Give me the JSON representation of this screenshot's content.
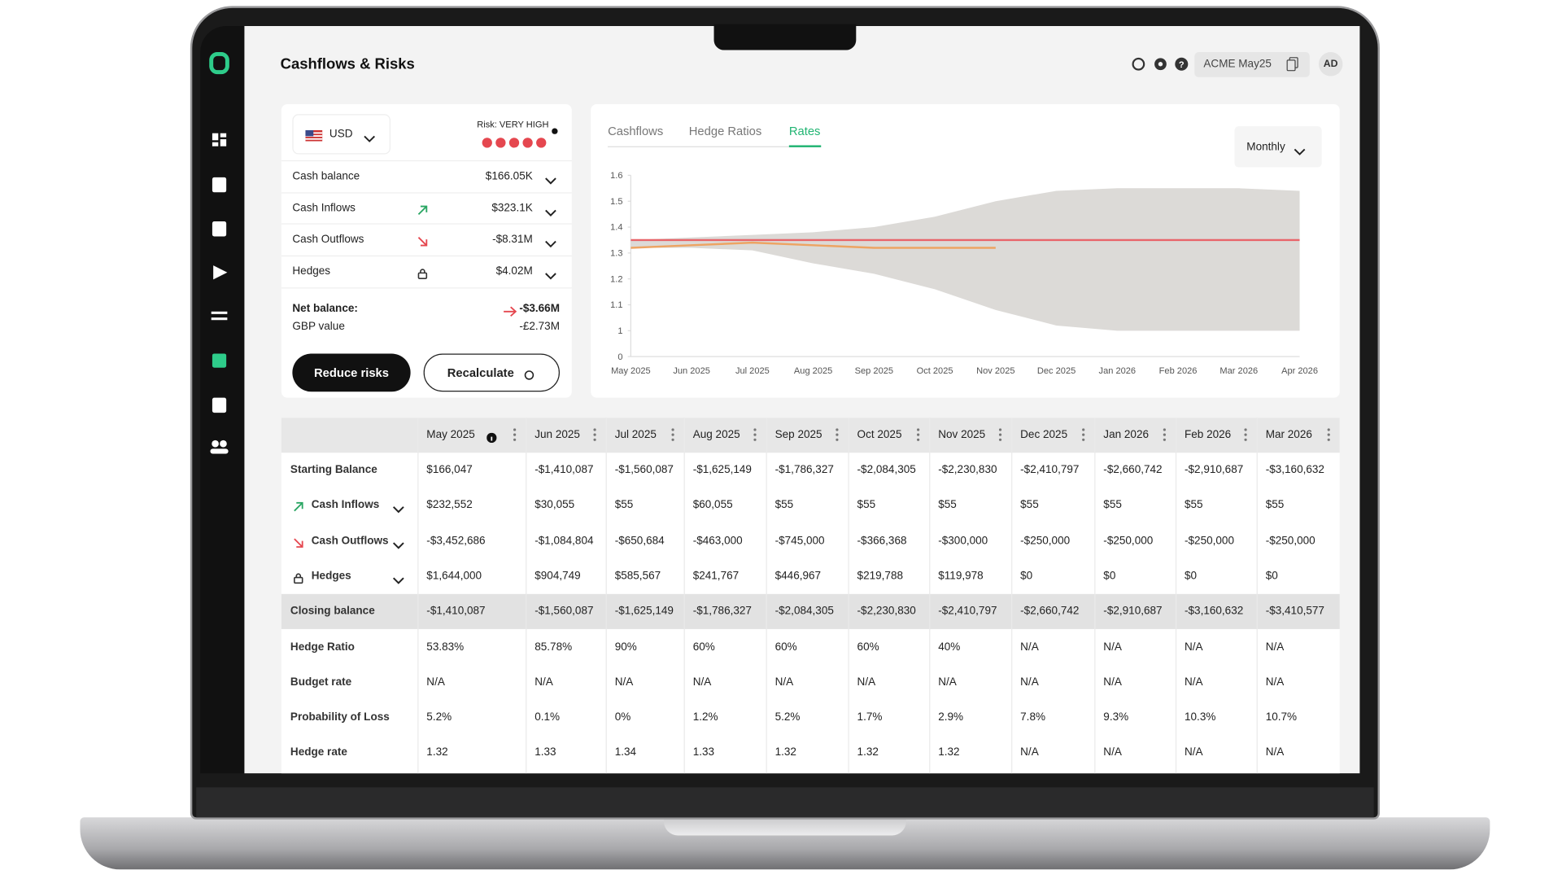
{
  "header": {
    "title": "Cashflows & Risks",
    "workspace": "ACME May25",
    "avatar": "AD"
  },
  "summary": {
    "currency": "USD",
    "risk_label": "Risk: VERY HIGH",
    "rows": [
      {
        "label": "Cash balance",
        "value": "$166.05K"
      },
      {
        "label": "Cash Inflows",
        "value": "$323.1K"
      },
      {
        "label": "Cash Outflows",
        "value": "-$8.31M"
      },
      {
        "label": "Hedges",
        "value": "$4.02M"
      }
    ],
    "net_balance_label": "Net balance:",
    "net_balance": "-$3.66M",
    "gbp_label": "GBP value",
    "gbp_value": "-£2.73M",
    "buttons": [
      "Reduce risks",
      "Recalculate"
    ]
  },
  "rates_chart": {
    "type": "line",
    "tabs": [
      "Cashflows",
      "Hedge Ratios",
      "Rates"
    ],
    "active_tab": 2,
    "period": "Monthly",
    "categories": [
      "May 2025",
      "Jun 2025",
      "Jul 2025",
      "Aug 2025",
      "Sep 2025",
      "Oct 2025",
      "Nov 2025",
      "Dec 2025",
      "Jan 2026",
      "Feb 2026",
      "Mar 2026",
      "Apr 2026"
    ],
    "ylim": [
      0,
      1.6
    ],
    "yticks": [
      0,
      1,
      1.1,
      1.2,
      1.3,
      1.4,
      1.5,
      1.6
    ],
    "band": {
      "color": "#dcdad7",
      "upper": [
        1.35,
        1.36,
        1.37,
        1.38,
        1.4,
        1.44,
        1.5,
        1.54,
        1.55,
        1.55,
        1.55,
        1.54
      ],
      "lower": [
        1.32,
        1.32,
        1.31,
        1.26,
        1.22,
        1.16,
        1.08,
        1.02,
        1.0,
        1.0,
        1.0,
        1.0
      ]
    },
    "series": [
      {
        "color": "#e8656a",
        "values": [
          1.35,
          1.35,
          1.35,
          1.35,
          1.35,
          1.35,
          1.35,
          1.35,
          1.35,
          1.35,
          1.35,
          1.35
        ]
      },
      {
        "color": "#eda463",
        "values": [
          1.32,
          1.33,
          1.34,
          1.33,
          1.32,
          1.32,
          1.32,
          null,
          null,
          null,
          null,
          null
        ]
      }
    ]
  },
  "table": {
    "columns": [
      "May 2025",
      "Jun 2025",
      "Jul 2025",
      "Aug 2025",
      "Sep 2025",
      "Oct 2025",
      "Nov 2025",
      "Dec 2025",
      "Jan 2026",
      "Feb 2026",
      "Mar 2026"
    ],
    "rows": [
      {
        "label": "Starting Balance",
        "cells": [
          "$166,047",
          "-$1,410,087",
          "-$1,560,087",
          "-$1,625,149",
          "-$1,786,327",
          "-$2,084,305",
          "-$2,230,830",
          "-$2,410,797",
          "-$2,660,742",
          "-$2,910,687",
          "-$3,160,632"
        ]
      },
      {
        "label": "Cash Inflows",
        "cells": [
          "$232,552",
          "$30,055",
          "$55",
          "$60,055",
          "$55",
          "$55",
          "$55",
          "$55",
          "$55",
          "$55",
          "$55"
        ]
      },
      {
        "label": "Cash Outflows",
        "cells": [
          "-$3,452,686",
          "-$1,084,804",
          "-$650,684",
          "-$463,000",
          "-$745,000",
          "-$366,368",
          "-$300,000",
          "-$250,000",
          "-$250,000",
          "-$250,000",
          "-$250,000"
        ]
      },
      {
        "label": "Hedges",
        "cells": [
          "$1,644,000",
          "$904,749",
          "$585,567",
          "$241,767",
          "$446,967",
          "$219,788",
          "$119,978",
          "$0",
          "$0",
          "$0",
          "$0"
        ]
      },
      {
        "label": "Closing balance",
        "cells": [
          "-$1,410,087",
          "-$1,560,087",
          "-$1,625,149",
          "-$1,786,327",
          "-$2,084,305",
          "-$2,230,830",
          "-$2,410,797",
          "-$2,660,742",
          "-$2,910,687",
          "-$3,160,632",
          "-$3,410,577"
        ]
      },
      {
        "label": "Hedge Ratio",
        "cells": [
          "53.83%",
          "85.78%",
          "90%",
          "60%",
          "60%",
          "60%",
          "40%",
          "N/A",
          "N/A",
          "N/A",
          "N/A"
        ]
      },
      {
        "label": "Budget rate",
        "cells": [
          "N/A",
          "N/A",
          "N/A",
          "N/A",
          "N/A",
          "N/A",
          "N/A",
          "N/A",
          "N/A",
          "N/A",
          "N/A"
        ]
      },
      {
        "label": "Probability of Loss",
        "cells": [
          "5.2%",
          "0.1%",
          "0%",
          "1.2%",
          "5.2%",
          "1.7%",
          "2.9%",
          "7.8%",
          "9.3%",
          "10.3%",
          "10.7%"
        ]
      },
      {
        "label": "Hedge rate",
        "cells": [
          "1.32",
          "1.33",
          "1.34",
          "1.33",
          "1.32",
          "1.32",
          "1.32",
          "N/A",
          "N/A",
          "N/A",
          "N/A"
        ]
      }
    ]
  }
}
